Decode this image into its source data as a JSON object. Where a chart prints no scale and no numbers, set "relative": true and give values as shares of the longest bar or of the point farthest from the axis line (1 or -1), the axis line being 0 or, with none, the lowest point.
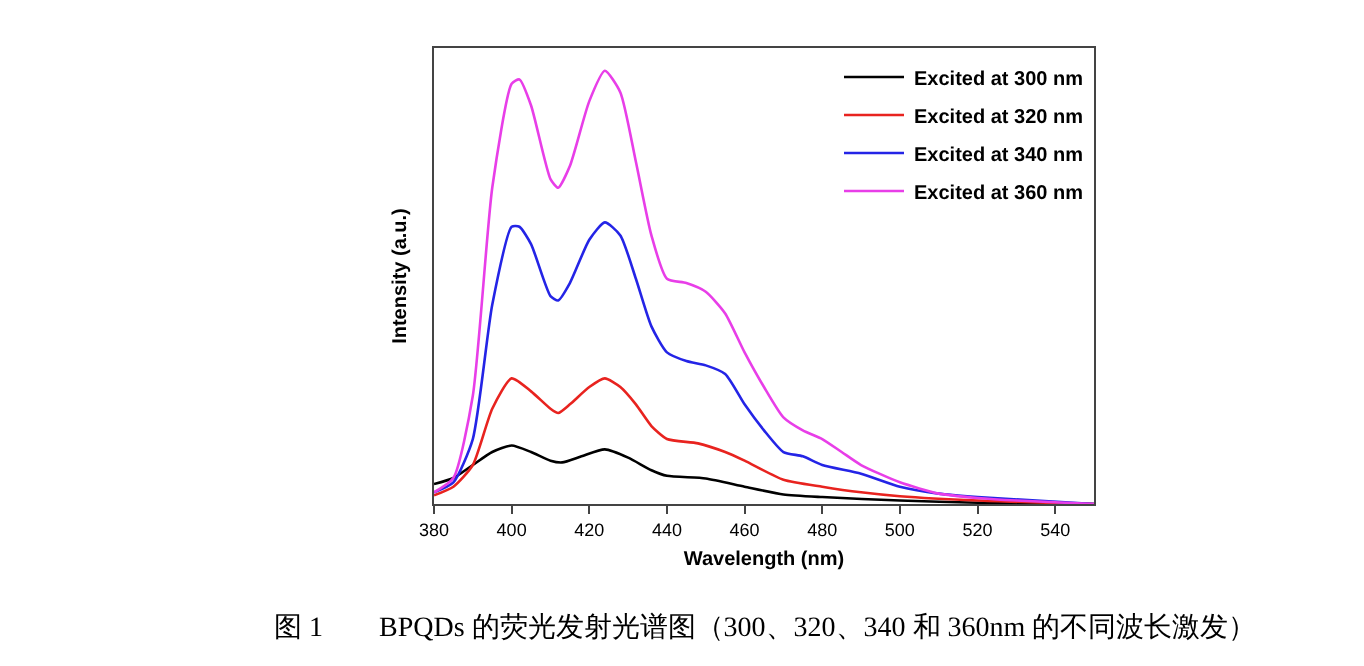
{
  "chart_data": {
    "type": "line",
    "relative": true,
    "xlabel": "Wavelength (nm)",
    "ylabel": "Intensity (a.u.)",
    "annotations": [
      "图 1　　BPQDs 的荧光发射光谱图（300、320、340 和 360nm 的不同波长激发）"
    ],
    "xlim": [
      380,
      550
    ],
    "xticks": [
      380,
      400,
      420,
      440,
      460,
      480,
      500,
      520,
      540
    ],
    "tick_labels": "x",
    "legend": "top right",
    "grid": false,
    "series": [
      {
        "name": "Excited at 300 nm",
        "color": "#000000",
        "x": [
          380,
          385,
          390,
          395,
          400,
          405,
          410,
          413,
          418,
          424,
          430,
          436,
          440,
          450,
          460,
          470,
          480,
          500,
          520,
          550
        ],
        "values": [
          0.046,
          0.06,
          0.09,
          0.12,
          0.135,
          0.12,
          0.1,
          0.096,
          0.11,
          0.126,
          0.107,
          0.078,
          0.065,
          0.059,
          0.04,
          0.022,
          0.016,
          0.008,
          0.003,
          0
        ]
      },
      {
        "name": "Excited at 320 nm",
        "color": "#e8231f",
        "x": [
          380,
          385,
          390,
          395,
          400,
          405,
          410,
          412,
          415,
          420,
          424,
          428,
          432,
          436,
          440,
          448,
          455,
          460,
          470,
          480,
          490,
          500,
          520,
          550
        ],
        "values": [
          0.02,
          0.04,
          0.09,
          0.22,
          0.29,
          0.26,
          0.22,
          0.21,
          0.23,
          0.27,
          0.29,
          0.27,
          0.23,
          0.18,
          0.15,
          0.14,
          0.12,
          0.1,
          0.056,
          0.04,
          0.027,
          0.018,
          0.008,
          0
        ]
      },
      {
        "name": "Excited at 340 nm",
        "color": "#2424e6",
        "x": [
          380,
          385,
          390,
          395,
          400,
          402,
          405,
          410,
          412,
          415,
          420,
          424,
          428,
          432,
          436,
          440,
          445,
          450,
          455,
          460,
          465,
          470,
          475,
          480,
          490,
          500,
          510,
          520,
          550
        ],
        "values": [
          0.027,
          0.05,
          0.15,
          0.46,
          0.64,
          0.64,
          0.6,
          0.48,
          0.47,
          0.51,
          0.61,
          0.65,
          0.62,
          0.52,
          0.41,
          0.35,
          0.33,
          0.32,
          0.3,
          0.23,
          0.17,
          0.12,
          0.11,
          0.09,
          0.07,
          0.04,
          0.024,
          0.016,
          0
        ]
      },
      {
        "name": "Excited at 360 nm",
        "color": "#e83ee8",
        "x": [
          380,
          385,
          390,
          395,
          400,
          402,
          405,
          410,
          412,
          415,
          420,
          424,
          428,
          432,
          436,
          440,
          445,
          450,
          455,
          460,
          465,
          470,
          475,
          480,
          485,
          490,
          500,
          510,
          520,
          530,
          550
        ],
        "values": [
          0.027,
          0.06,
          0.25,
          0.73,
          0.97,
          0.98,
          0.92,
          0.75,
          0.73,
          0.78,
          0.93,
          1,
          0.95,
          0.79,
          0.62,
          0.52,
          0.51,
          0.49,
          0.44,
          0.35,
          0.27,
          0.2,
          0.17,
          0.15,
          0.12,
          0.09,
          0.05,
          0.024,
          0.014,
          0.008,
          0
        ]
      }
    ]
  }
}
